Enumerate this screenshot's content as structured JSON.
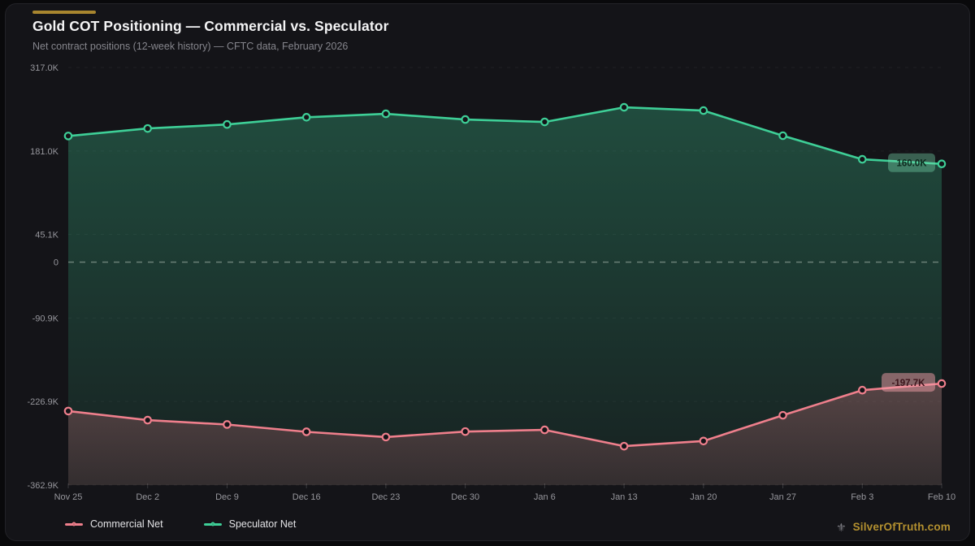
{
  "header": {
    "title": "Gold COT Positioning — Commercial vs. Speculator",
    "subtitle": "Net contract positions (12-week history) — CFTC data, February 2026"
  },
  "colors": {
    "accent_gold": "#a8862f",
    "commercial": "#ef7f8c",
    "speculator": "#3ecf97",
    "card_bg": "#141418",
    "axis_text": "#96969c",
    "zero_line_color": "#a9bcb1"
  },
  "chart_data": {
    "type": "line",
    "title": "Gold COT Positioning — Commercial vs. Speculator",
    "subtitle": "Net contract positions (12-week history) — CFTC data, February 2026",
    "unit": "contracts (thousands)",
    "categories": [
      "Nov 25",
      "Dec 2",
      "Dec 9",
      "Dec 16",
      "Dec 23",
      "Dec 30",
      "Jan 6",
      "Jan 13",
      "Jan 20",
      "Jan 27",
      "Feb 3",
      "Feb 10"
    ],
    "series": [
      {
        "name": "Commercial Net",
        "color": "#ef7f8c",
        "values_k": [
          -242.4,
          -257.2,
          -264.3,
          -276.2,
          -284.7,
          -275.8,
          -273.1,
          -299.6,
          -291.2,
          -249.3,
          -208.4,
          -197.7
        ],
        "end_label": "-197.7K"
      },
      {
        "name": "Speculator Net",
        "color": "#3ecf97",
        "values_k": [
          205.4,
          217.6,
          224.1,
          235.9,
          241.5,
          232.2,
          228.3,
          252.1,
          246.8,
          205.9,
          167.4,
          160.0
        ],
        "end_label": "160.0K"
      }
    ],
    "y_ticks": [
      {
        "label": "317.0K",
        "value": 317.0
      },
      {
        "label": "181.0K",
        "value": 181.0
      },
      {
        "label": "45.1K",
        "value": 45.1
      },
      {
        "label": "0",
        "value": 0
      },
      {
        "label": "-90.9K",
        "value": -90.9
      },
      {
        "label": "-226.9K",
        "value": -226.9
      },
      {
        "label": "-362.9K",
        "value": -362.9
      }
    ],
    "ylim_k": [
      -362.9,
      317.0
    ],
    "zero_line": true,
    "grid": "horizontal-dashed",
    "legend_position": "bottom-left"
  },
  "legend": {
    "items": [
      {
        "label": "Commercial Net"
      },
      {
        "label": "Speculator Net"
      }
    ]
  },
  "watermark": {
    "text": "SilverOfTruth.com"
  }
}
